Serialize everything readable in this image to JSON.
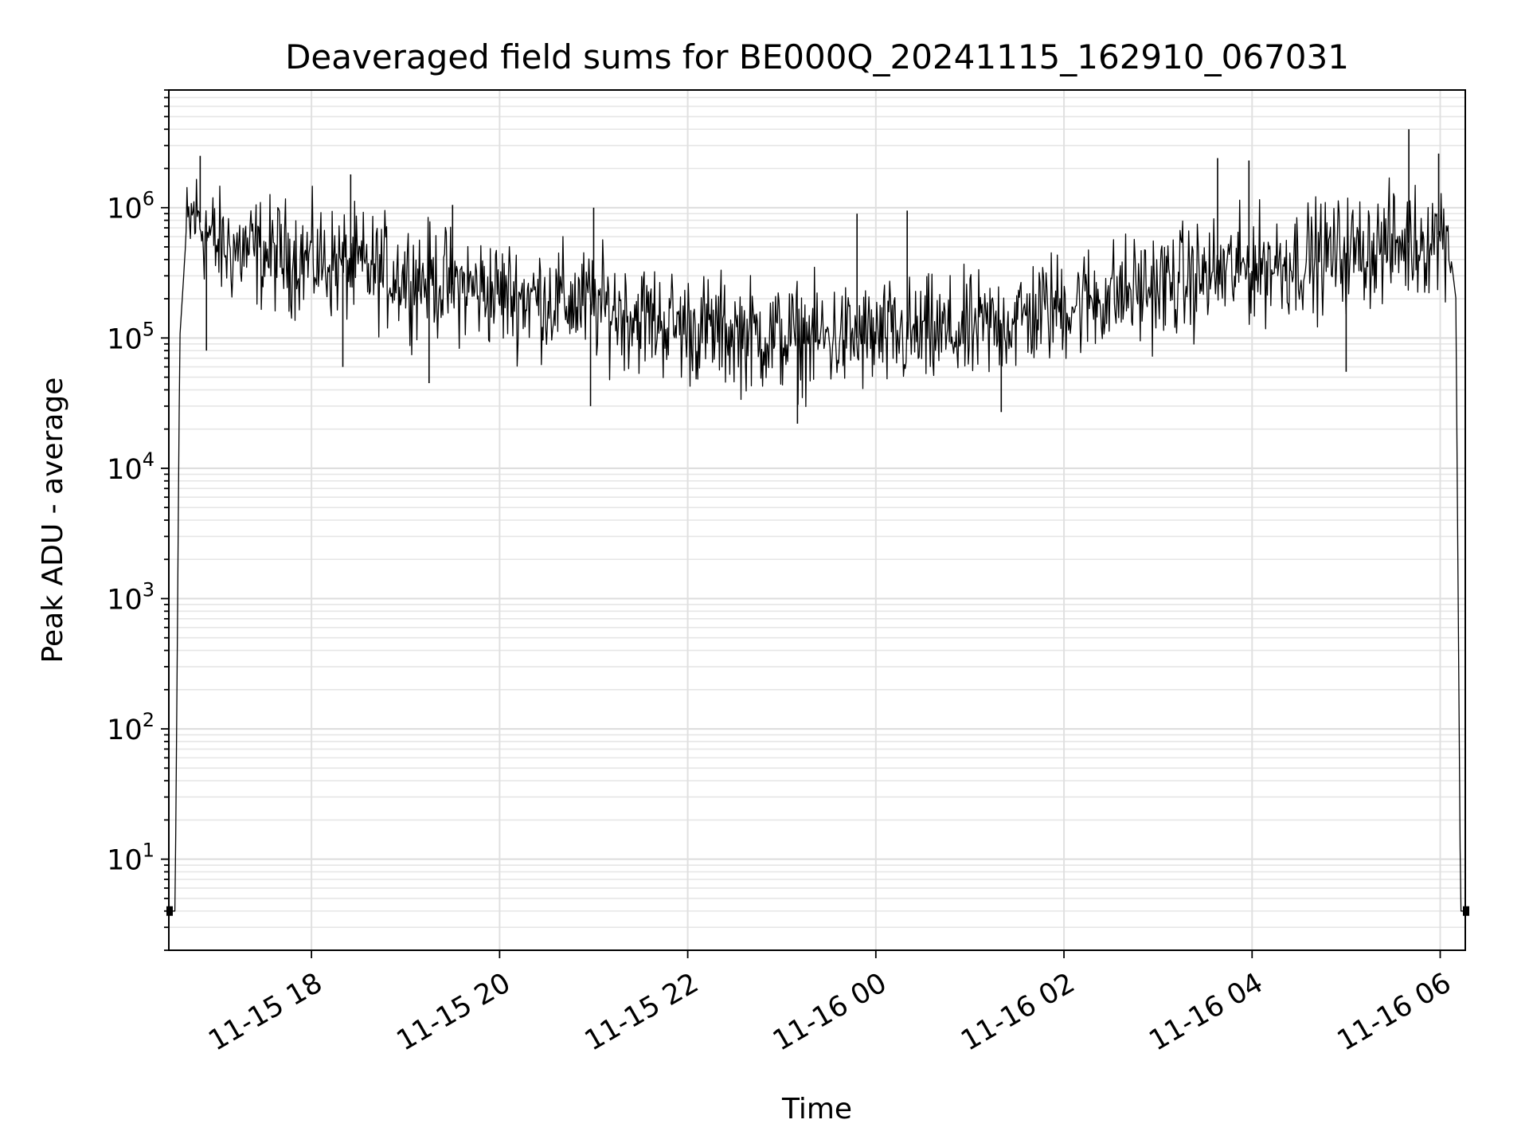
{
  "chart_data": {
    "type": "line",
    "title": "Deaveraged field sums for BE000Q_20241115_162910_067031",
    "xlabel": "Time",
    "ylabel": "Peak ADU - average",
    "y_scale": "log",
    "ylim": [
      2,
      8000000
    ],
    "xlim": [
      "2024-11-15 16:29",
      "2024-11-16 06:16"
    ],
    "grid": true,
    "x_ticks": [
      {
        "value": "2024-11-15 18:00",
        "label": "11-15 18"
      },
      {
        "value": "2024-11-15 20:00",
        "label": "11-15 20"
      },
      {
        "value": "2024-11-15 22:00",
        "label": "11-15 22"
      },
      {
        "value": "2024-11-16 00:00",
        "label": "11-16 00"
      },
      {
        "value": "2024-11-16 02:00",
        "label": "11-16 02"
      },
      {
        "value": "2024-11-16 04:00",
        "label": "11-16 04"
      },
      {
        "value": "2024-11-16 06:00",
        "label": "11-16 06"
      }
    ],
    "y_ticks": [
      {
        "value": 10,
        "base": "10",
        "exp": "1"
      },
      {
        "value": 100,
        "base": "10",
        "exp": "2"
      },
      {
        "value": 1000,
        "base": "10",
        "exp": "3"
      },
      {
        "value": 10000,
        "base": "10",
        "exp": "4"
      },
      {
        "value": 100000,
        "base": "10",
        "exp": "5"
      },
      {
        "value": 1000000,
        "base": "10",
        "exp": "6"
      }
    ],
    "series": [
      {
        "color": "#000000",
        "baseline": [
          {
            "t": "2024-11-15 16:29",
            "y": 4
          },
          {
            "t": "2024-11-15 16:33",
            "y": 4
          },
          {
            "t": "2024-11-15 16:36",
            "y": 100000
          },
          {
            "t": "2024-11-15 16:40",
            "y": 600000
          },
          {
            "t": "2024-11-15 16:45",
            "y": 900000
          },
          {
            "t": "2024-11-15 17:00",
            "y": 500000
          },
          {
            "t": "2024-11-15 18:00",
            "y": 400000
          },
          {
            "t": "2024-11-15 19:00",
            "y": 300000
          },
          {
            "t": "2024-11-15 20:00",
            "y": 220000
          },
          {
            "t": "2024-11-15 21:00",
            "y": 180000
          },
          {
            "t": "2024-11-15 22:00",
            "y": 120000
          },
          {
            "t": "2024-11-15 23:00",
            "y": 100000
          },
          {
            "t": "2024-11-16 00:00",
            "y": 100000
          },
          {
            "t": "2024-11-16 01:00",
            "y": 110000
          },
          {
            "t": "2024-11-16 02:00",
            "y": 180000
          },
          {
            "t": "2024-11-16 03:00",
            "y": 250000
          },
          {
            "t": "2024-11-16 04:00",
            "y": 350000
          },
          {
            "t": "2024-11-16 05:00",
            "y": 450000
          },
          {
            "t": "2024-11-16 05:45",
            "y": 550000
          },
          {
            "t": "2024-11-16 06:05",
            "y": 650000
          },
          {
            "t": "2024-11-16 06:10",
            "y": 200000
          },
          {
            "t": "2024-11-16 06:13",
            "y": 4
          },
          {
            "t": "2024-11-16 06:16",
            "y": 4
          }
        ],
        "spikes": [
          {
            "t": "2024-11-15 16:49",
            "y": 2500000
          },
          {
            "t": "2024-11-15 16:53",
            "y": 80000
          },
          {
            "t": "2024-11-15 18:25",
            "y": 1800000
          },
          {
            "t": "2024-11-15 18:20",
            "y": 60000
          },
          {
            "t": "2024-11-15 19:30",
            "y": 1050000
          },
          {
            "t": "2024-11-15 19:15",
            "y": 45000
          },
          {
            "t": "2024-11-15 21:00",
            "y": 1000000
          },
          {
            "t": "2024-11-15 20:58",
            "y": 30000
          },
          {
            "t": "2024-11-15 23:10",
            "y": 22000
          },
          {
            "t": "2024-11-15 23:48",
            "y": 900000
          },
          {
            "t": "2024-11-16 00:20",
            "y": 950000
          },
          {
            "t": "2024-11-16 01:20",
            "y": 27000
          },
          {
            "t": "2024-11-16 03:38",
            "y": 2400000
          },
          {
            "t": "2024-11-16 03:58",
            "y": 2300000
          },
          {
            "t": "2024-11-16 05:00",
            "y": 55000
          },
          {
            "t": "2024-11-16 05:40",
            "y": 4000000
          },
          {
            "t": "2024-11-16 05:59",
            "y": 2600000
          }
        ]
      }
    ]
  }
}
